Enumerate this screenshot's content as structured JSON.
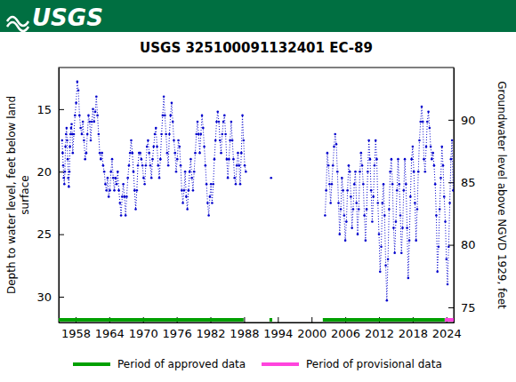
{
  "header": {
    "logo": "USGS"
  },
  "chart_data": {
    "type": "scatter",
    "title": "USGS 325100091132401 EC-89",
    "ylabel": [
      "Depth to water level, feet below land",
      "surface"
    ],
    "y2label": "Groundwater level above NGVD 1929, feet",
    "color": "#0000cc",
    "marker": "circle",
    "line_style": "dotted",
    "legend": "bottom",
    "xlim": [
      1955.0,
      2025.3
    ],
    "xticks": [
      1958,
      1964,
      1970,
      1976,
      1982,
      1988,
      1994,
      2000,
      2006,
      2012,
      2018,
      2024
    ],
    "ylim": [
      32.06,
      11.67
    ],
    "yticks": [
      15,
      20,
      25,
      30
    ],
    "y2lim": [
      73.79,
      94.18
    ],
    "y2ticks": [
      75,
      80,
      85,
      90
    ],
    "x": [
      1955.6,
      1955.7,
      1955.8,
      1955.9,
      1956.0,
      1956.1,
      1956.2,
      1956.3,
      1956.4,
      1956.5,
      1956.6,
      1956.7,
      1956.8,
      1956.9,
      1957.0,
      1957.1,
      1957.2,
      1957.3,
      1957.4,
      1957.5,
      1957.7,
      1957.9,
      1958.1,
      1958.3,
      1958.5,
      1958.7,
      1958.9,
      1959.1,
      1959.3,
      1959.5,
      1959.7,
      1959.9,
      1960.1,
      1960.3,
      1960.5,
      1960.7,
      1960.9,
      1961.1,
      1961.3,
      1961.5,
      1961.7,
      1961.9,
      1962.1,
      1962.3,
      1962.5,
      1962.7,
      1962.9,
      1963.1,
      1963.3,
      1963.5,
      1963.7,
      1963.9,
      1964.1,
      1964.3,
      1964.5,
      1964.7,
      1964.9,
      1965.1,
      1965.3,
      1965.5,
      1965.7,
      1965.9,
      1966.1,
      1966.3,
      1966.5,
      1966.7,
      1966.9,
      1967.1,
      1967.3,
      1967.5,
      1967.7,
      1967.9,
      1968.1,
      1968.3,
      1968.5,
      1968.7,
      1968.9,
      1969.1,
      1969.3,
      1969.5,
      1969.7,
      1969.9,
      1970.1,
      1970.3,
      1970.5,
      1970.7,
      1970.9,
      1971.1,
      1971.3,
      1971.5,
      1971.7,
      1971.9,
      1972.1,
      1972.3,
      1972.5,
      1972.7,
      1972.9,
      1973.1,
      1973.3,
      1973.5,
      1973.7,
      1973.9,
      1974.1,
      1974.3,
      1974.5,
      1974.7,
      1974.9,
      1975.1,
      1975.3,
      1975.5,
      1975.7,
      1975.9,
      1976.1,
      1976.3,
      1976.5,
      1976.7,
      1976.9,
      1977.1,
      1977.3,
      1977.5,
      1977.7,
      1977.9,
      1978.1,
      1978.3,
      1978.5,
      1978.7,
      1978.9,
      1979.1,
      1979.3,
      1979.5,
      1979.7,
      1979.9,
      1980.1,
      1980.3,
      1980.5,
      1980.7,
      1980.9,
      1981.1,
      1981.3,
      1981.5,
      1981.7,
      1981.9,
      1982.1,
      1982.3,
      1982.5,
      1982.7,
      1982.9,
      1983.1,
      1983.3,
      1983.5,
      1983.7,
      1983.9,
      1984.1,
      1984.3,
      1984.5,
      1984.7,
      1984.9,
      1985.1,
      1985.3,
      1985.5,
      1985.7,
      1985.9,
      1986.1,
      1986.3,
      1986.5,
      1986.7,
      1986.9,
      1987.1,
      1987.3,
      1987.5,
      1987.7,
      1987.9,
      1988.1,
      1988.3,
      null,
      1992.8,
      null,
      2002.4,
      2002.6,
      2002.8,
      2003.0,
      2003.2,
      2003.4,
      2003.6,
      2003.8,
      2004.0,
      2004.2,
      2004.4,
      2004.6,
      2004.8,
      2005.0,
      2005.2,
      2005.4,
      2005.6,
      2005.8,
      2006.0,
      2006.2,
      2006.4,
      2006.6,
      2006.8,
      2007.0,
      2007.2,
      2007.4,
      2007.6,
      2007.8,
      2008.0,
      2008.2,
      2008.4,
      2008.6,
      2008.8,
      2009.0,
      2009.2,
      2009.4,
      2009.6,
      2009.8,
      2010.0,
      2010.2,
      2010.4,
      2010.6,
      2010.8,
      2011.0,
      2011.2,
      2011.4,
      2011.6,
      2011.8,
      2012.0,
      2012.2,
      2012.4,
      2012.6,
      2012.8,
      2013.0,
      2013.2,
      2013.4,
      2013.6,
      2013.8,
      2014.0,
      2014.2,
      2014.4,
      2014.6,
      2014.8,
      2015.0,
      2015.2,
      2015.4,
      2015.6,
      2015.8,
      2016.0,
      2016.2,
      2016.4,
      2016.6,
      2016.8,
      2017.0,
      2017.2,
      2017.4,
      2017.6,
      2017.8,
      2018.0,
      2018.2,
      2018.4,
      2018.6,
      2018.8,
      2019.0,
      2019.2,
      2019.4,
      2019.6,
      2019.8,
      2020.0,
      2020.2,
      2020.4,
      2020.6,
      2020.8,
      2021.0,
      2021.2,
      2021.4,
      2021.6,
      2021.8,
      2022.0,
      2022.2,
      2022.4,
      2022.6,
      2022.8,
      2023.0,
      2023.2,
      2023.4,
      2023.6,
      2023.8,
      2024.0,
      2024.2,
      2024.4,
      2024.6,
      2024.8,
      2025.0,
      2025.2
    ],
    "values": [
      17.5,
      18.5,
      19.5,
      20.5,
      21,
      20,
      18,
      17,
      16.5,
      17.5,
      19,
      20.5,
      21.2,
      20,
      18,
      17,
      16.5,
      16.2,
      17,
      18.5,
      17,
      15.5,
      14.5,
      12.8,
      13.5,
      15.5,
      16.5,
      17,
      16,
      17.5,
      19,
      18.5,
      17,
      15.5,
      16,
      17.5,
      16,
      15,
      16,
      15.2,
      14,
      15.5,
      17,
      18.5,
      19,
      18.5,
      19.5,
      20,
      21,
      21.5,
      20.5,
      22,
      21.5,
      20,
      19,
      20.5,
      21.5,
      20.5,
      21,
      20,
      21.5,
      22.5,
      23.5,
      22,
      21,
      22,
      23.5,
      22,
      20.5,
      19.5,
      18.5,
      17.5,
      18.5,
      20,
      21.5,
      23,
      21.5,
      19.5,
      18.5,
      18.5,
      19,
      19.5,
      20.5,
      21,
      19.5,
      18,
      17.5,
      18.5,
      19.5,
      20.5,
      19,
      18,
      17,
      16.5,
      18,
      19.5,
      20.5,
      19,
      17,
      15.5,
      14,
      15.5,
      17,
      18.5,
      19.5,
      17,
      15.5,
      14.5,
      16,
      17.5,
      18.5,
      20,
      19,
      17.5,
      18,
      19.5,
      21.5,
      22.5,
      21.5,
      20,
      22,
      23,
      21.5,
      20,
      19,
      20.5,
      21.5,
      20,
      18.5,
      17,
      16,
      17,
      18.5,
      17,
      15.5,
      16.5,
      18,
      19.5,
      21,
      22.5,
      23.5,
      22,
      21,
      22.5,
      21,
      19,
      17.5,
      16,
      15.2,
      16,
      17.5,
      18.5,
      17,
      16,
      15.5,
      17,
      19,
      20.5,
      19,
      17.5,
      16,
      17.5,
      19,
      20.5,
      21,
      19.5,
      18.5,
      19.5,
      21,
      18.5,
      15.5,
      17.5,
      19.5,
      20,
      null,
      20.5,
      null,
      23.5,
      21.5,
      18.5,
      19.5,
      21,
      22.5,
      21,
      19.5,
      18,
      17,
      17.8,
      20,
      22.5,
      25,
      23,
      20.5,
      21.5,
      23.5,
      25.5,
      24,
      21.5,
      19.5,
      20,
      22,
      24.5,
      23,
      21,
      20,
      22.5,
      25,
      23,
      20,
      18.5,
      19.5,
      21,
      23.5,
      25.5,
      23,
      20,
      17.5,
      19,
      21.5,
      24,
      22,
      19.5,
      17.5,
      19,
      22.5,
      25,
      28,
      26,
      22.5,
      21,
      23.5,
      27.5,
      30.3,
      27,
      23,
      20,
      19,
      21,
      24.5,
      26.5,
      24,
      21.5,
      19,
      21,
      23.5,
      26.5,
      24.5,
      21.5,
      19,
      21,
      24.5,
      28.5,
      25.5,
      22,
      19,
      18,
      20,
      22.5,
      25.5,
      23,
      20,
      17.5,
      16,
      14.8,
      16,
      19,
      20,
      18,
      16,
      15.2,
      16.5,
      18,
      19,
      18.5,
      19.5,
      21,
      23.5,
      28,
      26,
      23,
      20.5,
      18,
      19.5,
      22,
      24,
      27,
      29,
      26,
      22.5,
      19,
      17.5,
      21.5
    ],
    "series": [
      {
        "name": "Period of approved data",
        "color": "#00a000",
        "ranges": [
          [
            1955.0,
            1987.9
          ],
          [
            1992.5,
            1993.0
          ],
          [
            2002.0,
            2023.7
          ]
        ]
      },
      {
        "name": "Period of provisional data",
        "color": "#ff44dd",
        "ranges": [
          [
            2023.7,
            2025.3
          ]
        ]
      }
    ]
  }
}
